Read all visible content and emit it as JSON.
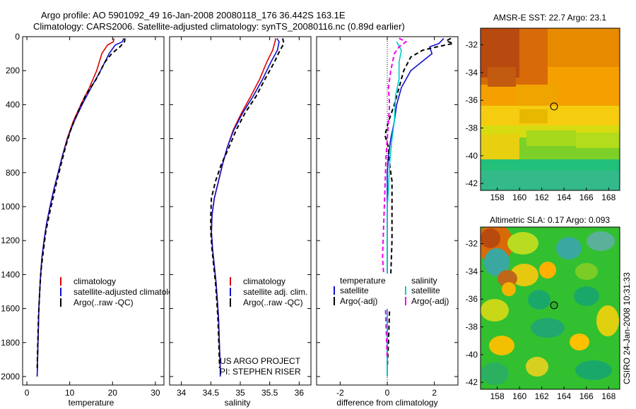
{
  "figure": {
    "title_line1": "Argo profile: AO 5901092_49 16-Jan-2008 20080118_176 36.442S 163.1E",
    "title_line2": "Climatology: CARS2006. Satellite-adjusted climatology: synTS_20080116.nc (0.89d earlier)",
    "credit": "CSIRO 24-Jan-2008 10:31:33"
  },
  "chart_data": [
    {
      "id": "temperature",
      "type": "line",
      "xlabel": "temperature",
      "ylabel": "",
      "xlim": [
        -1,
        32
      ],
      "ylim": [
        2050,
        0
      ],
      "xticks": [
        0,
        10,
        20,
        30
      ],
      "yticks": [
        0,
        200,
        400,
        600,
        800,
        1000,
        1200,
        1400,
        1600,
        1800,
        2000
      ],
      "legend": [
        "climatology",
        "satellite-adjusted climatology",
        "Argo(..raw -QC)"
      ],
      "series": [
        {
          "name": "climatology",
          "color": "#dd0000",
          "dash": "solid",
          "points": [
            [
              20.3,
              10
            ],
            [
              20.2,
              30
            ],
            [
              18.8,
              50
            ],
            [
              17.5,
              100
            ],
            [
              16.3,
              200
            ],
            [
              14.6,
              300
            ],
            [
              12.6,
              400
            ],
            [
              10.8,
              500
            ],
            [
              9.4,
              600
            ],
            [
              8.3,
              700
            ],
            [
              7.3,
              800
            ],
            [
              6.3,
              900
            ],
            [
              5.4,
              1000
            ],
            [
              4.6,
              1100
            ],
            [
              4.0,
              1200
            ],
            [
              3.5,
              1300
            ],
            [
              3.2,
              1400
            ],
            [
              3.0,
              1500
            ],
            [
              2.8,
              1600
            ],
            [
              2.7,
              1700
            ],
            [
              2.6,
              1800
            ],
            [
              2.5,
              1900
            ],
            [
              2.4,
              2000
            ]
          ]
        },
        {
          "name": "satellite-adjusted climatology",
          "color": "#1111cc",
          "dash": "solid",
          "points": [
            [
              22.6,
              10
            ],
            [
              22.3,
              30
            ],
            [
              20.6,
              50
            ],
            [
              19.2,
              100
            ],
            [
              17.2,
              200
            ],
            [
              15.0,
              300
            ],
            [
              12.9,
              400
            ],
            [
              11.0,
              500
            ],
            [
              9.5,
              600
            ],
            [
              8.3,
              700
            ],
            [
              7.3,
              800
            ],
            [
              6.3,
              900
            ],
            [
              5.4,
              1000
            ],
            [
              4.6,
              1100
            ],
            [
              4.0,
              1200
            ],
            [
              3.5,
              1300
            ],
            [
              3.2,
              1400
            ],
            [
              3.0,
              1500
            ],
            [
              2.8,
              1600
            ],
            [
              2.7,
              1700
            ],
            [
              2.6,
              1800
            ],
            [
              2.5,
              1900
            ],
            [
              2.4,
              2000
            ]
          ]
        },
        {
          "name": "Argo(..raw -QC)",
          "color": "#000000",
          "dash": "dashed",
          "points": [
            [
              22.9,
              10
            ],
            [
              22.8,
              30
            ],
            [
              21.7,
              60
            ],
            [
              19.8,
              100
            ],
            [
              18.2,
              150
            ],
            [
              16.2,
              250
            ],
            [
              13.6,
              350
            ],
            [
              11.8,
              450
            ],
            [
              10.2,
              550
            ],
            [
              9.0,
              650
            ],
            [
              8.0,
              750
            ],
            [
              7.0,
              850
            ],
            [
              6.1,
              950
            ],
            [
              5.2,
              1050
            ],
            [
              4.4,
              1150
            ],
            [
              3.9,
              1250
            ],
            [
              3.4,
              1350
            ],
            [
              3.1,
              1450
            ],
            [
              2.9,
              1550
            ],
            [
              2.7,
              1650
            ],
            [
              2.6,
              1750
            ],
            [
              2.5,
              1850
            ],
            [
              2.4,
              1950
            ]
          ]
        }
      ]
    },
    {
      "id": "salinity",
      "type": "line",
      "xlabel": "salinity",
      "ylabel": "",
      "xlim": [
        33.8,
        36.2
      ],
      "ylim": [
        2050,
        0
      ],
      "xticks": [
        34,
        34.5,
        35,
        35.5,
        36
      ],
      "yticks": [
        0,
        200,
        400,
        600,
        800,
        1000,
        1200,
        1400,
        1600,
        1800,
        2000
      ],
      "legend": [
        "climatology",
        "satellite adj. clim.",
        "Argo(..raw -QC)"
      ],
      "annotation": [
        "US ARGO PROJECT",
        "PI: STEPHEN RISER"
      ],
      "series": [
        {
          "name": "climatology",
          "color": "#dd0000",
          "dash": "solid",
          "points": [
            [
              35.6,
              10
            ],
            [
              35.59,
              30
            ],
            [
              35.55,
              80
            ],
            [
              35.45,
              150
            ],
            [
              35.33,
              250
            ],
            [
              35.18,
              350
            ],
            [
              35.02,
              450
            ],
            [
              34.88,
              550
            ],
            [
              34.78,
              650
            ],
            [
              34.7,
              750
            ],
            [
              34.63,
              850
            ],
            [
              34.56,
              950
            ],
            [
              34.52,
              1050
            ],
            [
              34.51,
              1150
            ],
            [
              34.53,
              1250
            ],
            [
              34.56,
              1350
            ],
            [
              34.59,
              1450
            ],
            [
              34.61,
              1550
            ],
            [
              34.63,
              1650
            ],
            [
              34.64,
              1750
            ],
            [
              34.65,
              1850
            ],
            [
              34.66,
              1950
            ],
            [
              34.66,
              2000
            ]
          ]
        },
        {
          "name": "satellite adj. clim.",
          "color": "#1111cc",
          "dash": "solid",
          "points": [
            [
              35.62,
              10
            ],
            [
              35.66,
              30
            ],
            [
              35.63,
              80
            ],
            [
              35.52,
              150
            ],
            [
              35.38,
              250
            ],
            [
              35.22,
              350
            ],
            [
              35.04,
              450
            ],
            [
              34.89,
              550
            ],
            [
              34.78,
              650
            ],
            [
              34.7,
              750
            ],
            [
              34.63,
              850
            ],
            [
              34.56,
              950
            ],
            [
              34.52,
              1050
            ],
            [
              34.51,
              1150
            ],
            [
              34.53,
              1250
            ],
            [
              34.56,
              1350
            ],
            [
              34.59,
              1450
            ],
            [
              34.61,
              1550
            ],
            [
              34.63,
              1650
            ],
            [
              34.64,
              1750
            ],
            [
              34.65,
              1850
            ],
            [
              34.66,
              1950
            ],
            [
              34.66,
              2000
            ]
          ]
        },
        {
          "name": "Argo(..raw -QC)",
          "color": "#000000",
          "dash": "dashed",
          "points": [
            [
              35.72,
              10
            ],
            [
              35.74,
              40
            ],
            [
              35.66,
              90
            ],
            [
              35.58,
              150
            ],
            [
              35.42,
              250
            ],
            [
              35.27,
              350
            ],
            [
              35.08,
              450
            ],
            [
              34.93,
              550
            ],
            [
              34.81,
              650
            ],
            [
              34.68,
              750
            ],
            [
              34.58,
              850
            ],
            [
              34.51,
              950
            ],
            [
              34.5,
              1050
            ],
            [
              34.5,
              1150
            ],
            [
              34.52,
              1250
            ],
            [
              34.55,
              1350
            ],
            [
              34.58,
              1450
            ],
            [
              34.6,
              1550
            ],
            [
              34.62,
              1650
            ],
            [
              34.63,
              1750
            ],
            [
              34.64,
              1850
            ],
            [
              34.65,
              1950
            ]
          ]
        }
      ]
    },
    {
      "id": "difference",
      "type": "line",
      "xlabel": "difference from climatology",
      "ylabel": "",
      "xlim": [
        -3,
        3
      ],
      "ylim": [
        2050,
        0
      ],
      "xticks": [
        -2,
        0,
        2
      ],
      "yticks": [
        0,
        200,
        400,
        600,
        800,
        1000,
        1200,
        1400,
        1600,
        1800,
        2000
      ],
      "legend_headers": [
        "temperature",
        "salinity"
      ],
      "legend": [
        "satellite",
        "Argo(-adj)",
        "satellite",
        "Argo(-adj)"
      ],
      "series": [
        {
          "name": "temperature satellite",
          "color": "#1111cc",
          "dash": "solid",
          "points": [
            [
              2.4,
              10
            ],
            [
              2.2,
              40
            ],
            [
              1.8,
              60
            ],
            [
              1.9,
              100
            ],
            [
              1.0,
              200
            ],
            [
              0.6,
              300
            ],
            [
              0.4,
              400
            ],
            [
              0.3,
              500
            ],
            [
              0.15,
              600
            ],
            [
              0.05,
              700
            ],
            [
              0,
              800
            ],
            [
              0,
              1000
            ],
            [
              0,
              1200
            ],
            [
              0,
              1400
            ],
            [
              0,
              1600
            ],
            [
              0,
              1800
            ],
            [
              0,
              2000
            ]
          ]
        },
        {
          "name": "temperature Argo(-adj)",
          "color": "#000000",
          "dash": "dashed",
          "points": [
            [
              2.7,
              10
            ],
            [
              2.5,
              25
            ],
            [
              2.8,
              40
            ],
            [
              2.1,
              60
            ],
            [
              1.5,
              80
            ],
            [
              1.0,
              120
            ],
            [
              0.7,
              200
            ],
            [
              0.5,
              300
            ],
            [
              0.3,
              400
            ],
            [
              0.05,
              500
            ],
            [
              -0.1,
              580
            ],
            [
              0.05,
              650
            ],
            [
              0.1,
              750
            ],
            [
              0.2,
              850
            ],
            [
              0.2,
              1000
            ],
            [
              0.2,
              1200
            ],
            [
              0.15,
              1400
            ],
            [
              0.1,
              1600
            ],
            [
              0.05,
              1800
            ],
            [
              0,
              1950
            ]
          ]
        },
        {
          "name": "salinity satellite",
          "color": "#00cccc",
          "dash": "solid",
          "points": [
            [
              0.4,
              30
            ],
            [
              0.6,
              80
            ],
            [
              0.5,
              150
            ],
            [
              0.5,
              250
            ],
            [
              0.35,
              350
            ],
            [
              0.3,
              500
            ],
            [
              0.2,
              600
            ],
            [
              0.1,
              750
            ],
            [
              0.05,
              900
            ],
            [
              0,
              1000
            ],
            [
              0,
              1200
            ],
            [
              0,
              1400
            ],
            [
              0,
              1600
            ],
            [
              0,
              1800
            ],
            [
              0,
              2000
            ]
          ]
        },
        {
          "name": "salinity Argo(-adj)",
          "color": "#ee00ee",
          "dash": "dashed",
          "points": [
            [
              0.5,
              10
            ],
            [
              0.8,
              30
            ],
            [
              0.5,
              60
            ],
            [
              0.3,
              100
            ],
            [
              0.15,
              200
            ],
            [
              0.05,
              300
            ],
            [
              0.1,
              400
            ],
            [
              0.05,
              500
            ],
            [
              -0.05,
              700
            ],
            [
              -0.1,
              900
            ],
            [
              -0.15,
              1100
            ],
            [
              -0.2,
              1300
            ],
            [
              -0.1,
              1500
            ],
            [
              -0.05,
              1700
            ],
            [
              0,
              1900
            ]
          ]
        }
      ]
    },
    {
      "id": "amsre_sst_map",
      "type": "heatmap",
      "title": "AMSR-E SST: 22.7 Argo: 23.1",
      "xlim": [
        156.5,
        169
      ],
      "ylim": [
        -42.5,
        -30.8
      ],
      "xticks": [
        158,
        160,
        162,
        164,
        166,
        168
      ],
      "yticks": [
        -32,
        -34,
        -36,
        -38,
        -40,
        -42
      ],
      "marker": {
        "lon": 163.1,
        "lat": -36.442,
        "fill": "none"
      }
    },
    {
      "id": "altimetric_sla_map",
      "type": "heatmap",
      "title": "Altimetric SLA: 0.17 Argo: 0.093",
      "xlim": [
        156.5,
        169
      ],
      "ylim": [
        -42.5,
        -30.8
      ],
      "xticks": [
        158,
        160,
        162,
        164,
        166,
        168
      ],
      "yticks": [
        -32,
        -34,
        -36,
        -38,
        -40,
        -42
      ],
      "marker": {
        "lon": 163.1,
        "lat": -36.442,
        "fill": "#33aa33"
      }
    }
  ]
}
